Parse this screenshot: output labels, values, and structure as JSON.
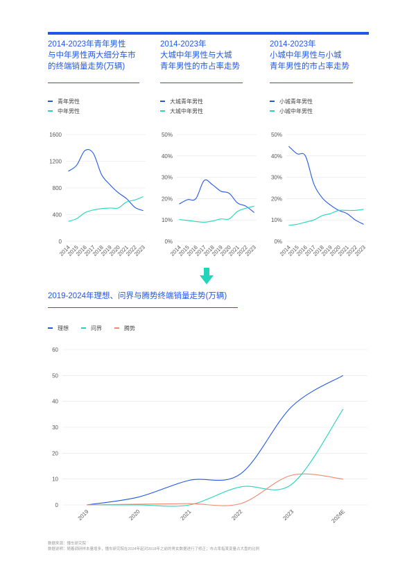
{
  "charts": [
    {
      "title": "2014-2023年青年男性\n与中年男性两大细分车市\n的终端销量走势(万辆)",
      "legend": [
        "青年男性",
        "中年男性"
      ],
      "colors": [
        "#2157e8",
        "#1fd6bb"
      ],
      "chart_data": {
        "type": "line",
        "categories": [
          "2014",
          "2015",
          "2016",
          "2017",
          "2018",
          "2019",
          "2020",
          "2021",
          "2022",
          "2023"
        ],
        "yticks": [
          "0",
          "400",
          "800",
          "1200",
          "1600"
        ],
        "ylim": [
          0,
          1600
        ],
        "series": [
          {
            "name": "青年男性",
            "values": [
              1050,
              1140,
              1360,
              1320,
              1000,
              850,
              730,
              640,
              510,
              460
            ]
          },
          {
            "name": "中年男性",
            "values": [
              300,
              340,
              430,
              470,
              490,
              500,
              500,
              590,
              620,
              670
            ]
          }
        ]
      }
    },
    {
      "title": "2014-2023年\n大城中年男性与大城\n青年男性的市占率走势",
      "legend": [
        "大城青年男性",
        "大城中年男性"
      ],
      "colors": [
        "#2157e8",
        "#1fd6bb"
      ],
      "chart_data": {
        "type": "line",
        "categories": [
          "2014",
          "2015",
          "2016",
          "2017",
          "2018",
          "2019",
          "2020",
          "2021",
          "2022",
          "2023"
        ],
        "yticks": [
          "0%",
          "10%",
          "20%",
          "30%",
          "40%",
          "50%"
        ],
        "ylim": [
          0,
          50
        ],
        "series": [
          {
            "name": "大城青年男性",
            "values": [
              17.5,
              19.5,
              20,
              28.5,
              26.5,
              23.5,
              22.5,
              18,
              16.5,
              13.5
            ]
          },
          {
            "name": "大城中年男性",
            "values": [
              10.2,
              9.8,
              9.3,
              9.0,
              9.5,
              10.5,
              10.5,
              14,
              15.5,
              16.5
            ]
          }
        ]
      }
    },
    {
      "title": "2014-2023年\n小城中年男性与小城\n青年男性的市占率走势",
      "legend": [
        "小城青年男性",
        "小城中年男性"
      ],
      "colors": [
        "#2157e8",
        "#1fd6bb"
      ],
      "chart_data": {
        "type": "line",
        "categories": [
          "2014",
          "2015",
          "2016",
          "2017",
          "2018",
          "2019",
          "2020",
          "2021",
          "2022",
          "2023"
        ],
        "yticks": [
          "0%",
          "10%",
          "20%",
          "30%",
          "40%",
          "50%"
        ],
        "ylim": [
          0,
          50
        ],
        "series": [
          {
            "name": "小城青年男性",
            "values": [
              44.5,
              41,
              40,
              27,
              20.5,
              17,
              14.5,
              13,
              10,
              8
            ]
          },
          {
            "name": "小城中年男性",
            "values": [
              7.5,
              8,
              9,
              10,
              12,
              13,
              14.5,
              14.5,
              14.5,
              15
            ]
          }
        ]
      }
    }
  ],
  "big_chart": {
    "title": "2019-2024年理想、问界与腾势终端销量走势(万辆)",
    "legend": [
      "理想",
      "问界",
      "腾势"
    ],
    "colors": [
      "#2157e8",
      "#1fd6bb",
      "#f08a6e"
    ],
    "chart_data": {
      "type": "line",
      "categories": [
        "2019",
        "2020",
        "2021",
        "2022",
        "2023",
        "2024E"
      ],
      "yticks": [
        "0",
        "10",
        "20",
        "30",
        "40",
        "50",
        "60"
      ],
      "ylim": [
        0,
        60
      ],
      "series": [
        {
          "name": "理想",
          "values": [
            0,
            3,
            9.5,
            12,
            38,
            50
          ]
        },
        {
          "name": "问界",
          "values": [
            0,
            0,
            0,
            7,
            8,
            37
          ]
        },
        {
          "name": "腾势",
          "values": [
            0,
            0.3,
            0.5,
            0.5,
            11.5,
            10
          ]
        }
      ]
    }
  },
  "footnotes": [
    "数据来源：懂车研究院",
    "数据说明：随着调研样本量增多，懂车研究院在2024年起对2018年之前的男女数据进行了修正；市占率指某变量占大盘的比例"
  ]
}
